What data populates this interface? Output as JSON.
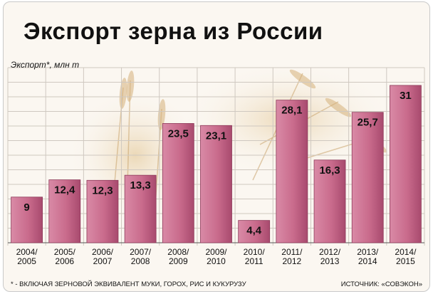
{
  "chart_data": {
    "type": "bar",
    "title": "Экспорт зерна из России",
    "ylabel": "Экспорт*, млн т",
    "categories": [
      "2004/2005",
      "2005/2006",
      "2006/2007",
      "2007/2008",
      "2008/2009",
      "2009/2010",
      "2010/2011",
      "2011/2012",
      "2012/2013",
      "2013/2014",
      "2014/2015"
    ],
    "category_lines": [
      [
        "2004/",
        "2005"
      ],
      [
        "2005/",
        "2006"
      ],
      [
        "2006/",
        "2007"
      ],
      [
        "2007/",
        "2008"
      ],
      [
        "2008/",
        "2009"
      ],
      [
        "2009/",
        "2010"
      ],
      [
        "2010/",
        "2011"
      ],
      [
        "2011/",
        "2012"
      ],
      [
        "2012/",
        "2013"
      ],
      [
        "2013/",
        "2014"
      ],
      [
        "2014/",
        "2015"
      ]
    ],
    "values": [
      9,
      12.4,
      12.3,
      13.3,
      23.5,
      23.1,
      4.4,
      28.1,
      16.3,
      25.7,
      31
    ],
    "value_labels": [
      "9",
      "12,4",
      "12,3",
      "13,3",
      "23,5",
      "23,1",
      "4,4",
      "28,1",
      "16,3",
      "25,7",
      "31"
    ],
    "ylim": [
      0,
      34.5
    ],
    "grid": true,
    "bar_color": "#c96b8c",
    "bar_edge_color": "#8e3a5a"
  },
  "footnote": "* - ВКЛЮЧАЯ ЗЕРНОВОЙ ЭКВИВАЛЕНТ МУКИ, ГОРОХ, РИС И КУКУРУЗУ",
  "source": "ИСТОЧНИК: «СОВЭКОН»"
}
